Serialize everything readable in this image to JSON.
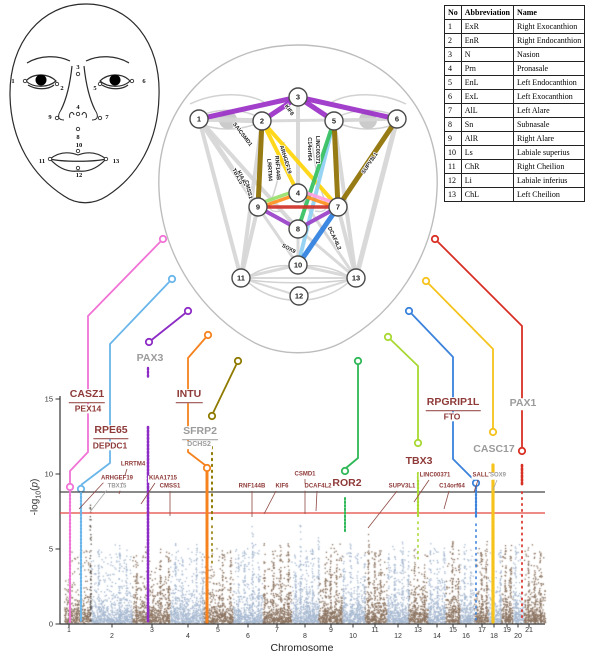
{
  "landmark_table": {
    "headers": [
      "No",
      "Abbreviation",
      "Name"
    ],
    "rows": [
      [
        "1",
        "ExR",
        "Right Exocanthion"
      ],
      [
        "2",
        "EnR",
        "Right Endocanthion"
      ],
      [
        "3",
        "N",
        "Nasion"
      ],
      [
        "4",
        "Prn",
        "Pronasale"
      ],
      [
        "5",
        "EnL",
        "Left Endocanthion"
      ],
      [
        "6",
        "ExL",
        "Left Exocanthion"
      ],
      [
        "7",
        "AlL",
        "Left Alare"
      ],
      [
        "8",
        "Sn",
        "Subnasale"
      ],
      [
        "9",
        "AlR",
        "Right Alare"
      ],
      [
        "10",
        "Ls",
        "Labiale superius"
      ],
      [
        "11",
        "ChR",
        "Right Cheilion"
      ],
      [
        "12",
        "Li",
        "Labiale inferius"
      ],
      [
        "13",
        "ChL",
        "Left Cheilion"
      ]
    ]
  },
  "face_diagram": {
    "landmark_numbers": [
      "1",
      "2",
      "3",
      "4",
      "5",
      "6",
      "7",
      "8",
      "9",
      "10",
      "11",
      "12",
      "13"
    ]
  },
  "network": {
    "node_numbers": [
      "1",
      "2",
      "3",
      "4",
      "5",
      "6",
      "7",
      "8",
      "9",
      "10",
      "11",
      "12",
      "13"
    ],
    "edges": [
      {
        "a": "1",
        "b": "2",
        "c": "#d6d6d6",
        "w": 5
      },
      {
        "a": "1",
        "b": "9",
        "c": "#d6d6d6",
        "w": 5
      },
      {
        "a": "1",
        "b": "8",
        "c": "#d6d6d6",
        "w": 4
      },
      {
        "a": "1",
        "b": "11",
        "c": "#d6d6d6",
        "w": 4
      },
      {
        "a": "2",
        "b": "6",
        "c": "#d6d6d6",
        "w": 3
      },
      {
        "a": "2",
        "b": "11",
        "c": "#d6d6d6",
        "w": 4
      },
      {
        "a": "3",
        "b": "4",
        "c": "#d6d6d6",
        "w": 4
      },
      {
        "a": "5",
        "b": "6",
        "c": "#d6d6d6",
        "w": 3
      },
      {
        "a": "5",
        "b": "13",
        "c": "#d6d6d6",
        "w": 4
      },
      {
        "a": "6",
        "b": "13",
        "c": "#d6d6d6",
        "w": 5
      },
      {
        "a": "4",
        "b": "13",
        "c": "#d6d6d6",
        "w": 3
      },
      {
        "a": "8",
        "b": "13",
        "c": "#d6d6d6",
        "w": 3
      },
      {
        "a": "8",
        "b": "10",
        "c": "#d6d6d6",
        "w": 3
      },
      {
        "a": "9",
        "b": "10",
        "c": "#d6d6d6",
        "w": 3
      },
      {
        "a": "9",
        "b": "11",
        "c": "#d6d6d6",
        "w": 4
      },
      {
        "a": "10",
        "b": "11",
        "c": "#d6d6d6",
        "w": 3
      },
      {
        "a": "10",
        "b": "13",
        "c": "#d6d6d6",
        "w": 3
      },
      {
        "a": "7",
        "b": "13",
        "c": "#d6d6d6",
        "w": 4
      },
      {
        "a": "11",
        "b": "12",
        "c": "#d6d6d6",
        "w": 2
      },
      {
        "a": "12",
        "b": "13",
        "c": "#d6d6d6",
        "w": 2
      },
      {
        "a": "11",
        "b": "13",
        "c": "#d6d6d6",
        "w": 2
      },
      {
        "a": "2",
        "b": "4",
        "c": "#ffd50a",
        "w": 4
      },
      {
        "a": "2",
        "b": "7",
        "c": "#ffd50a",
        "w": 4
      },
      {
        "a": "5",
        "b": "10",
        "c": "#8fd0f2",
        "w": 4
      },
      {
        "a": "5",
        "b": "8",
        "c": "#35c060",
        "w": 4
      },
      {
        "a": "2",
        "b": "9",
        "c": "#8f7000",
        "w": 5
      },
      {
        "a": "5",
        "b": "7",
        "c": "#8f7000",
        "w": 5
      },
      {
        "a": "6",
        "b": "7",
        "c": "#8f7000",
        "w": 5
      },
      {
        "a": "9",
        "b": "8",
        "c": "#9a41c8",
        "w": 4
      },
      {
        "a": "8",
        "b": "7",
        "c": "#9a41c8",
        "w": 4
      },
      {
        "a": "4",
        "b": "7",
        "c": "#ff9fe2",
        "w": 3.5,
        "dy": -3
      },
      {
        "a": "4",
        "b": "9",
        "c": "#97e06a",
        "w": 3.5,
        "dy": -3
      },
      {
        "a": "4",
        "b": "9",
        "c": "#ff9020",
        "w": 3.5,
        "dy": 1
      },
      {
        "a": "4",
        "b": "7",
        "c": "#ff9020",
        "w": 3.5,
        "dy": 1
      },
      {
        "a": "9",
        "b": "7",
        "c": "#d03028",
        "w": 3.5
      },
      {
        "a": "7",
        "b": "10",
        "c": "#2e7fe0",
        "w": 5
      },
      {
        "a": "1",
        "b": "3",
        "c": "#9b30c8",
        "w": 5
      },
      {
        "a": "2",
        "b": "3",
        "c": "#9b30c8",
        "w": 5
      },
      {
        "a": "3",
        "b": "5",
        "c": "#9b30c8",
        "w": 5
      },
      {
        "a": "3",
        "b": "6",
        "c": "#9b30c8",
        "w": 5
      }
    ],
    "edge_labels": [
      "SALL1",
      "CSMD1",
      "KIF6",
      "ARHGEF19",
      "LRRTM4",
      "RNF144B",
      "C14orf64",
      "LINC00371",
      "TBX15",
      "KIAA1715",
      "CMSS1",
      "SUPV3L1",
      "SOX9",
      "DCAF4L2"
    ]
  },
  "chart_data": {
    "type": "scatter",
    "subtype": "manhattan",
    "xlabel": "Chromosome",
    "ylabel": "-log10(p)",
    "ylabel_parts": {
      "prefix": "-log",
      "sub": "10",
      "open": "(",
      "variable": "p",
      "close": ")"
    },
    "x_categories": [
      "1",
      "2",
      "3",
      "4",
      "5",
      "6",
      "7",
      "8",
      "9",
      "10",
      "11",
      "12",
      "13",
      "14",
      "15",
      "16",
      "17",
      "18",
      "19",
      "20",
      "21"
    ],
    "yticks": [
      0,
      5,
      10,
      15
    ],
    "ylim": [
      0,
      15.5
    ],
    "significance_thresholds": [
      {
        "value": 8.8,
        "color": "#454545"
      },
      {
        "value": 7.4,
        "color": "#e2473d"
      }
    ],
    "base_point_colors": [
      "#8b7360",
      "#a6b8d0"
    ],
    "highlighted_loci": [
      {
        "genes": [
          "CASZ1",
          "PEX14"
        ],
        "chromosome": "1",
        "peak": 9.1,
        "color": "#f173d6",
        "style": "novel",
        "underline": true
      },
      {
        "genes": [
          "RPE65",
          "DEPDC1"
        ],
        "chromosome": "1",
        "peak": 9.0,
        "color": "#6ab6ea",
        "style": "novel",
        "underline": true
      },
      {
        "genes": [
          "PAX3"
        ],
        "chromosome": "3",
        "peak": 13.1,
        "color": "#8d2cc5",
        "style": "known",
        "underline": false
      },
      {
        "genes": [
          "INTU"
        ],
        "chromosome": "4",
        "peak": 10.4,
        "color": "#f5821e",
        "style": "novel",
        "underline": true
      },
      {
        "genes": [
          "SFRP2",
          "DCHS2"
        ],
        "chromosome": "4",
        "peak": 13.9,
        "color": "#8f7a00",
        "style": "known",
        "underline": true
      },
      {
        "genes": [
          "ROR2"
        ],
        "chromosome": "9",
        "peak": 10.2,
        "color": "#2fb857",
        "style": "novel",
        "underline": false
      },
      {
        "genes": [
          "TBX3"
        ],
        "chromosome": "12",
        "peak": 12.1,
        "color": "#a8d832",
        "style": "novel",
        "underline": false
      },
      {
        "genes": [
          "RPGRIP1L",
          "FTO"
        ],
        "chromosome": "16",
        "peak": 9.4,
        "color": "#3b82dc",
        "style": "novel",
        "underline": true
      },
      {
        "genes": [
          "CASC17"
        ],
        "chromosome": "17",
        "peak": 12.8,
        "color": "#f6c31c",
        "style": "known",
        "underline": false
      },
      {
        "genes": [
          "PAX1"
        ],
        "chromosome": "20",
        "peak": 11.5,
        "color": "#d93025",
        "style": "known",
        "underline": false
      }
    ],
    "secondary_loci": [
      {
        "gene": "ARHGEF19",
        "style": "novel"
      },
      {
        "gene": "TBX15",
        "style": "known"
      },
      {
        "gene": "LRRTM4",
        "style": "novel"
      },
      {
        "gene": "KIAA1715",
        "style": "novel"
      },
      {
        "gene": "CMSS1",
        "style": "novel"
      },
      {
        "gene": "RNF144B",
        "style": "novel"
      },
      {
        "gene": "KIF6",
        "style": "novel"
      },
      {
        "gene": "CSMD1",
        "style": "novel"
      },
      {
        "gene": "DCAF4L2",
        "style": "novel"
      },
      {
        "gene": "SUPV3L1",
        "style": "novel"
      },
      {
        "gene": "LINC00371",
        "style": "novel"
      },
      {
        "gene": "C14orf64",
        "style": "novel"
      },
      {
        "gene": "SALL1",
        "style": "novel"
      },
      {
        "gene": "SOX9",
        "style": "known"
      }
    ],
    "label_colors": {
      "novel": "#8e3a38",
      "known": "#9b9b9b"
    }
  }
}
